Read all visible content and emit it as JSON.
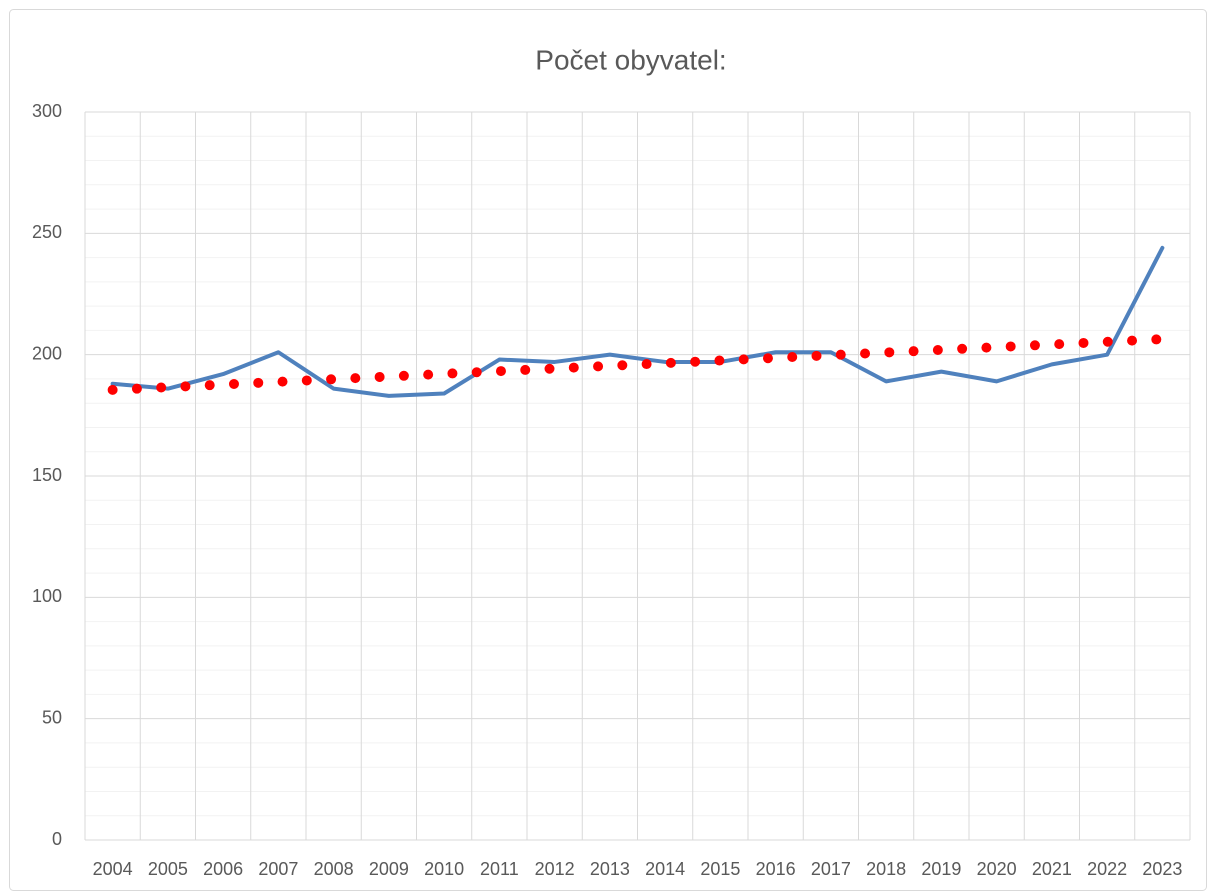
{
  "chart_data": {
    "type": "line",
    "title": "Počet obyvatel:",
    "categories": [
      "2004",
      "2005",
      "2006",
      "2007",
      "2008",
      "2009",
      "2010",
      "2011",
      "2012",
      "2013",
      "2014",
      "2015",
      "2016",
      "2017",
      "2018",
      "2019",
      "2020",
      "2021",
      "2022",
      "2023"
    ],
    "series": [
      {
        "color": "#4f81bd",
        "style": "solid",
        "values": [
          188,
          186,
          192,
          201,
          186,
          183,
          184,
          198,
          197,
          200,
          197,
          197,
          201,
          201,
          189,
          193,
          189,
          196,
          200,
          244
        ]
      },
      {
        "color": "#ff0000",
        "style": "dotted",
        "values": [
          185.5,
          186.6,
          187.7,
          188.8,
          189.9,
          191,
          192.1,
          193.2,
          194.3,
          195.4,
          196.5,
          197.6,
          198.7,
          199.8,
          200.9,
          202,
          203.1,
          204.2,
          205.3,
          206.4
        ]
      }
    ],
    "ylim": [
      0,
      300
    ],
    "yticks": [
      0,
      50,
      100,
      150,
      200,
      250,
      300
    ],
    "minor_yticks": [
      10,
      20,
      30,
      40,
      60,
      70,
      80,
      90,
      110,
      120,
      130,
      140,
      160,
      170,
      180,
      190,
      210,
      220,
      230,
      240,
      260,
      270,
      280,
      290
    ],
    "grid": true
  }
}
